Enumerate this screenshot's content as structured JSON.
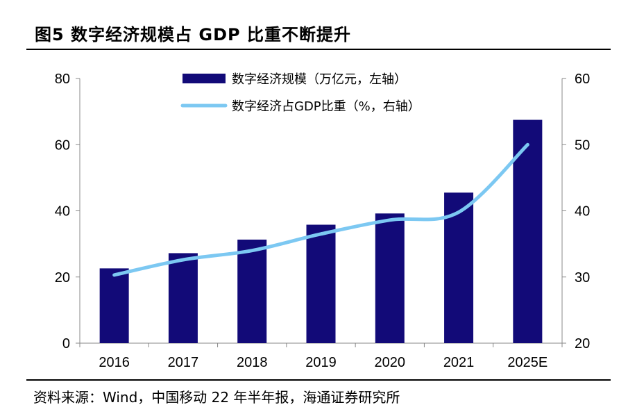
{
  "title": "图5   数字经济规模占 GDP 比重不断提升",
  "source": "资料来源：Wind，中国移动 22 年半年报，海通证券研究所",
  "colors": {
    "bar": "#120a78",
    "line": "#7cc8f2",
    "axis": "#888888"
  },
  "chart_data": {
    "type": "bar",
    "categories": [
      "2016",
      "2017",
      "2018",
      "2019",
      "2020",
      "2021",
      "2025E"
    ],
    "series": [
      {
        "name": "数字经济规模（万亿元，左轴）",
        "type": "bar",
        "axis": "left",
        "values": [
          22.6,
          27.2,
          31.3,
          35.8,
          39.2,
          45.5,
          67.5
        ]
      },
      {
        "name": "数字经济占GDP比重（%，右轴）",
        "type": "line",
        "axis": "right",
        "values": [
          30.3,
          32.6,
          34.0,
          36.5,
          38.6,
          39.8,
          50.0
        ]
      }
    ],
    "y_left": {
      "min": 0,
      "max": 80,
      "ticks": [
        0,
        20,
        40,
        60,
        80
      ]
    },
    "y_right": {
      "min": 20,
      "max": 60,
      "ticks": [
        20,
        30,
        40,
        50,
        60
      ]
    },
    "legend_position": "top-center"
  }
}
